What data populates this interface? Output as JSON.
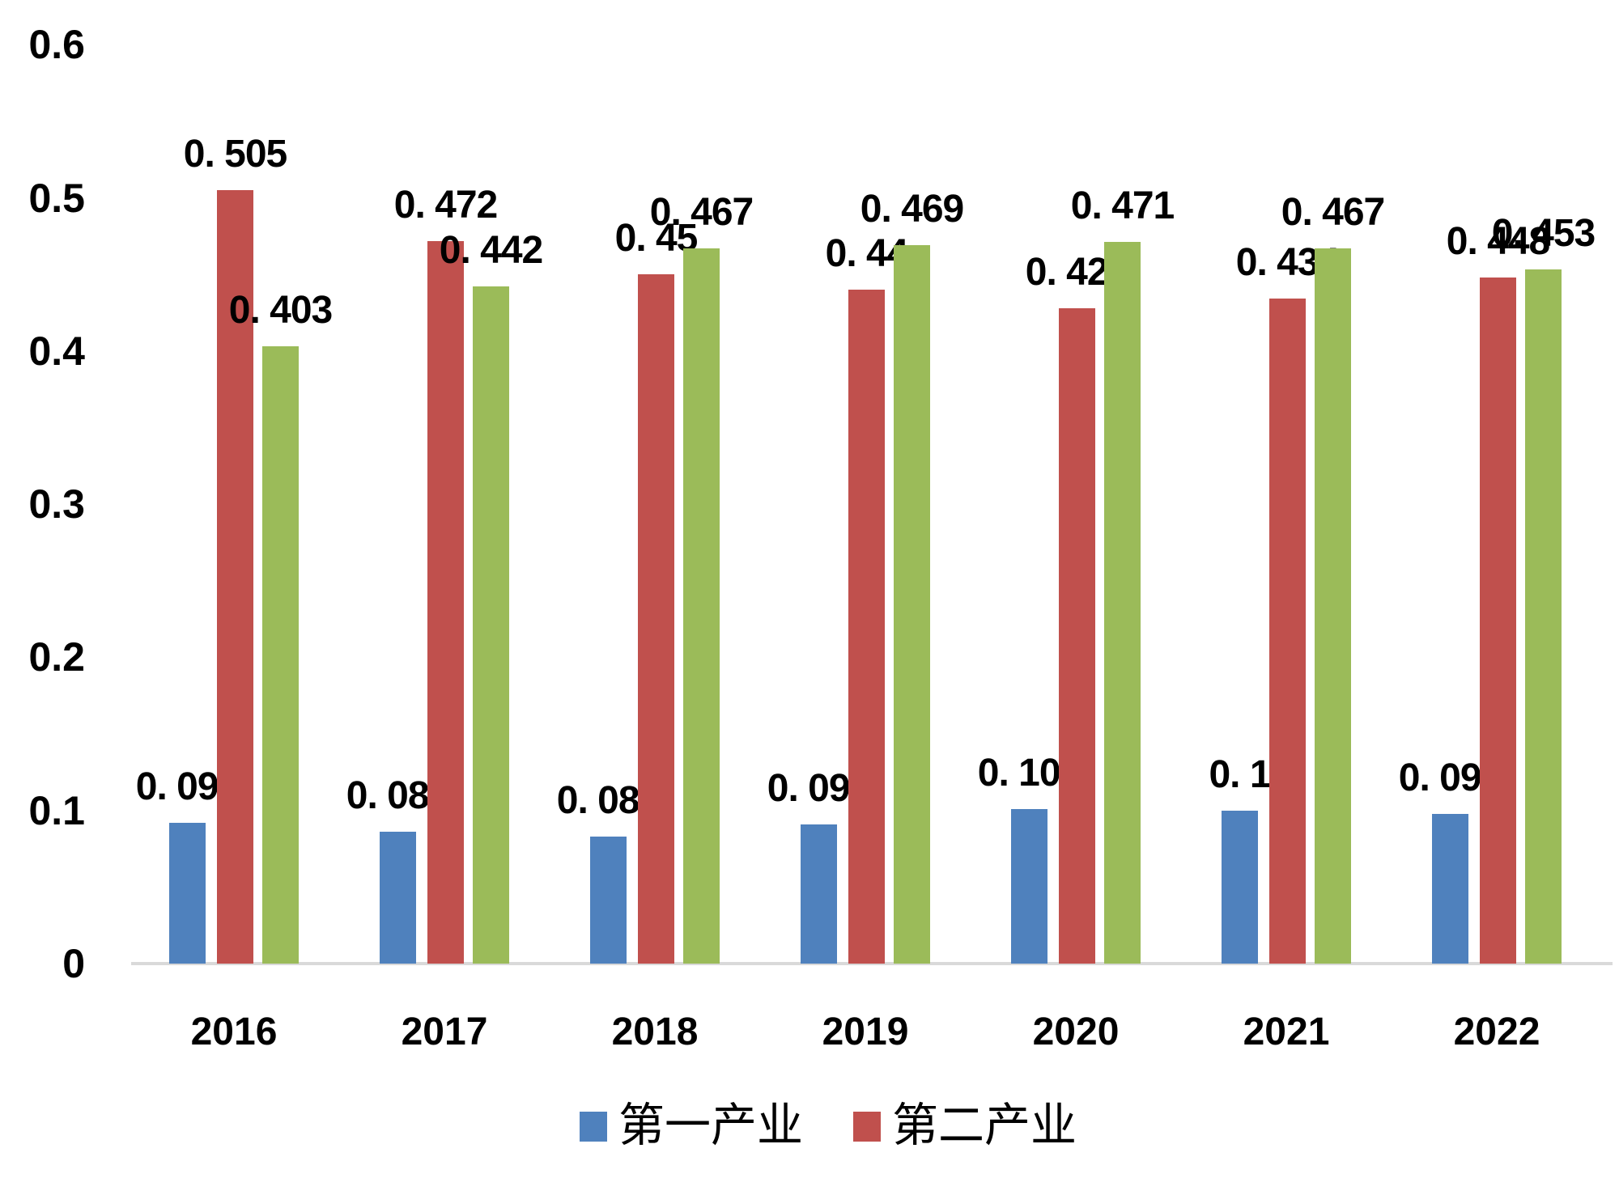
{
  "chart_data": {
    "type": "bar",
    "title": "",
    "categories": [
      "2016",
      "2017",
      "2018",
      "2019",
      "2020",
      "2021",
      "2022"
    ],
    "series": [
      {
        "name": "第一产业",
        "color": "#4F81BD",
        "values": [
          0.092,
          0.086,
          0.083,
          0.091,
          0.101,
          0.1,
          0.098
        ],
        "labels": [
          "0. 092",
          "0. 086",
          "0. 083",
          "0. 091",
          "0. 101",
          "0. 1",
          "0. 098"
        ]
      },
      {
        "name": "第二产业",
        "color": "#C0504D",
        "values": [
          0.505,
          0.472,
          0.45,
          0.44,
          0.428,
          0.434,
          0.448
        ],
        "labels": [
          "0. 505",
          "0. 472",
          "0. 45",
          "0. 44",
          "0. 428",
          "0. 434",
          "0. 448"
        ]
      },
      {
        "name": "",
        "color": "#9BBB59",
        "values": [
          0.403,
          0.442,
          0.467,
          0.469,
          0.471,
          0.467,
          0.453
        ],
        "labels": [
          "0. 403",
          "0. 442",
          "0. 467",
          "0. 469",
          "0. 471",
          "0. 467",
          "0. 453"
        ]
      }
    ],
    "y_axis": {
      "ticks": [
        "0.6",
        "0.5",
        "0.4",
        "0.3",
        "0.2",
        "0.1",
        "0"
      ],
      "tick_values": [
        0.6,
        0.5,
        0.4,
        0.3,
        0.2,
        0.1,
        0
      ],
      "min": 0,
      "max": 0.6
    },
    "x_axis_line_color": "#d9d9d9",
    "grid": false,
    "data_labels_shown": true,
    "legend": {
      "position": "bottom",
      "items": [
        {
          "label": "第一产业",
          "color": "#4F81BD"
        },
        {
          "label": "第二产业",
          "color": "#C0504D"
        }
      ]
    }
  }
}
